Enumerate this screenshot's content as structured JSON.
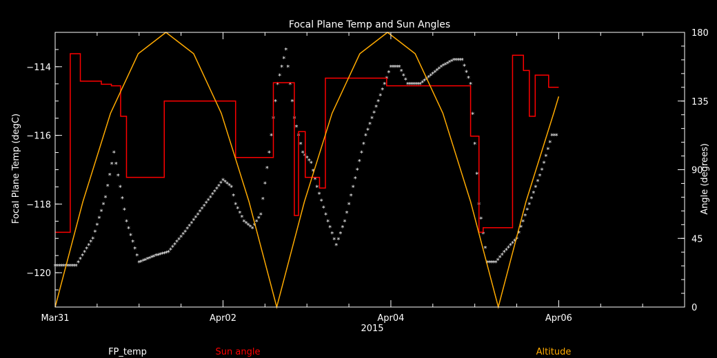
{
  "chart_data": {
    "type": "line",
    "title": "Focal Plane Temp and Sun Angles",
    "xlabel": "2015",
    "ylabel_left": "Focal Plane Temp (degC)",
    "ylabel_right": "Angle (degrees)",
    "x_unit": "days since Mar31 00:00",
    "xlim": [
      0,
      7.5
    ],
    "ylim_left": [
      -121,
      -113
    ],
    "ylim_right": [
      0,
      180
    ],
    "x_ticks": [
      {
        "value": 0,
        "label": "Mar31"
      },
      {
        "value": 2,
        "label": "Apr02"
      },
      {
        "value": 4,
        "label": "Apr04"
      },
      {
        "value": 6,
        "label": "Apr06"
      }
    ],
    "y_ticks_left": [
      {
        "value": -120,
        "label": "−120"
      },
      {
        "value": -118,
        "label": "−118"
      },
      {
        "value": -116,
        "label": "−116"
      },
      {
        "value": -114,
        "label": "−114"
      }
    ],
    "y_ticks_right": [
      {
        "value": 0,
        "label": "0"
      },
      {
        "value": 45,
        "label": "45"
      },
      {
        "value": 90,
        "label": "90"
      },
      {
        "value": 135,
        "label": "135"
      },
      {
        "value": 180,
        "label": "180"
      }
    ],
    "legend": [
      {
        "name": "FP_temp",
        "color": "#ffffff"
      },
      {
        "name": "Sun angle",
        "color": "#ff0000"
      },
      {
        "name": "Altitude",
        "color": "#ffaa00"
      }
    ],
    "series": [
      {
        "name": "FP_temp",
        "axis": "left",
        "style": "markers",
        "color": "#ffffff",
        "x": [
          0.0,
          0.25,
          0.45,
          0.6,
          0.7,
          0.85,
          1.0,
          1.1,
          1.2,
          1.35,
          1.45,
          1.55,
          1.7,
          1.85,
          2.0,
          2.1,
          2.15,
          2.25,
          2.35,
          2.45,
          2.55,
          2.65,
          2.75,
          2.85,
          2.95,
          3.05,
          3.12,
          3.25,
          3.35,
          3.45,
          3.5,
          3.6,
          3.7,
          3.85,
          4.0,
          4.1,
          4.2,
          4.35,
          4.5,
          4.6,
          4.75,
          4.85,
          4.95,
          5.05,
          5.15,
          5.25,
          5.35,
          5.5,
          5.65,
          5.8,
          5.92,
          6.0
        ],
        "y": [
          -119.8,
          -119.8,
          -119.0,
          -117.8,
          -116.5,
          -118.5,
          -119.7,
          -119.6,
          -119.5,
          -119.4,
          -119.1,
          -118.8,
          -118.3,
          -117.8,
          -117.3,
          -117.5,
          -118.0,
          -118.5,
          -118.7,
          -118.3,
          -116.5,
          -114.5,
          -113.5,
          -115.5,
          -116.5,
          -116.8,
          -117.5,
          -118.5,
          -119.2,
          -118.5,
          -118.0,
          -117.0,
          -116.0,
          -115.0,
          -114.0,
          -114.0,
          -114.5,
          -114.5,
          -114.2,
          -114.0,
          -113.8,
          -113.8,
          -114.5,
          -118.0,
          -119.7,
          -119.7,
          -119.4,
          -119.0,
          -118.0,
          -117.0,
          -116.0,
          -116.0
        ]
      },
      {
        "name": "Sun angle",
        "axis": "right",
        "style": "step",
        "color": "#ff0000",
        "x": [
          0.0,
          0.1,
          0.18,
          0.3,
          0.55,
          0.67,
          0.78,
          0.85,
          1.05,
          1.3,
          1.7,
          2.0,
          2.15,
          2.27,
          2.6,
          2.8,
          2.85,
          2.9,
          2.98,
          3.15,
          3.22,
          3.3,
          3.5,
          3.95,
          4.25,
          4.9,
          4.95,
          5.05,
          5.1,
          5.2,
          5.4,
          5.45,
          5.52,
          5.58,
          5.65,
          5.72,
          5.8,
          5.88,
          5.95,
          6.0
        ],
        "y": [
          49,
          49,
          166,
          148,
          146,
          145,
          125,
          85,
          85,
          135,
          135,
          135,
          98,
          98,
          147,
          147,
          60,
          115,
          85,
          78,
          150,
          150,
          150,
          145,
          145,
          145,
          112,
          49,
          52,
          52,
          52,
          165,
          165,
          155,
          125,
          152,
          152,
          144,
          144,
          144
        ]
      },
      {
        "name": "Altitude",
        "axis": "right",
        "style": "line",
        "color": "#ffaa00",
        "period_days": 2.65,
        "x": [
          0.0,
          0.33,
          0.66,
          0.99,
          1.32,
          1.65,
          1.98,
          2.31,
          2.64,
          2.97,
          3.3,
          3.63,
          3.96,
          4.29,
          4.62,
          4.95,
          5.28,
          5.61,
          5.94,
          6.0
        ],
        "y": [
          0,
          69,
          127,
          166,
          180,
          166,
          127,
          69,
          0,
          69,
          127,
          166,
          180,
          166,
          127,
          69,
          0,
          69,
          127,
          138
        ]
      }
    ]
  }
}
